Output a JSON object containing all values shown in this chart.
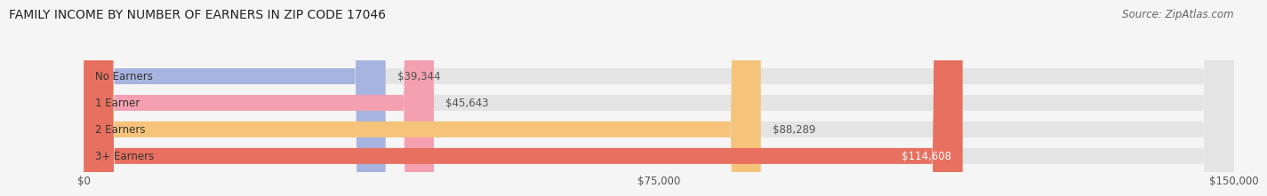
{
  "title": "FAMILY INCOME BY NUMBER OF EARNERS IN ZIP CODE 17046",
  "source": "Source: ZipAtlas.com",
  "categories": [
    "No Earners",
    "1 Earner",
    "2 Earners",
    "3+ Earners"
  ],
  "values": [
    39344,
    45643,
    88289,
    114608
  ],
  "bar_colors": [
    "#a8b4e0",
    "#f4a0b0",
    "#f5c47a",
    "#e87060"
  ],
  "value_labels": [
    "$39,344",
    "$45,643",
    "$88,289",
    "$114,608"
  ],
  "value_label_inside": [
    false,
    false,
    false,
    true
  ],
  "xlim": [
    0,
    150000
  ],
  "xticks": [
    0,
    75000,
    150000
  ],
  "xtick_labels": [
    "$0",
    "$75,000",
    "$150,000"
  ],
  "title_fontsize": 10,
  "source_fontsize": 8.5,
  "label_fontsize": 8.5,
  "value_fontsize": 8.5,
  "tick_fontsize": 8.5,
  "bar_height": 0.6,
  "bg_color": "#f5f5f5",
  "bar_row_bg": "#e4e4e4"
}
